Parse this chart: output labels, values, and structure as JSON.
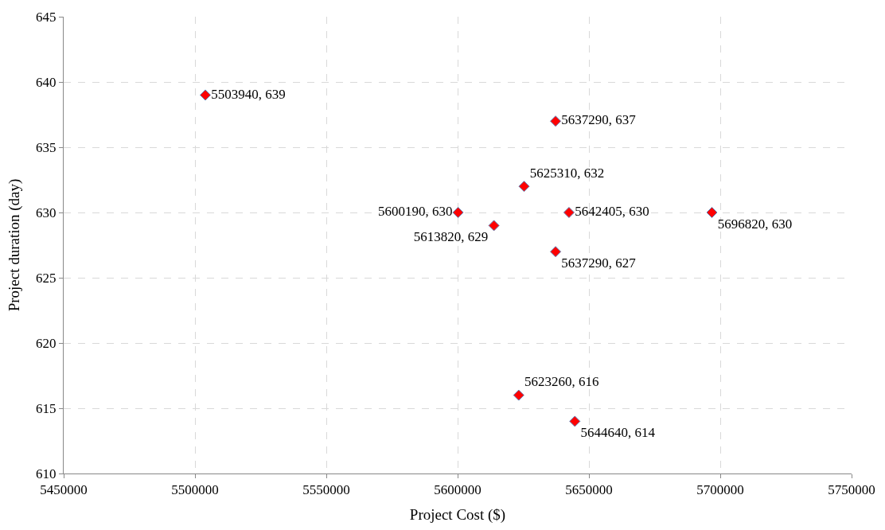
{
  "chart_data": {
    "type": "scatter",
    "xlabel": "Project Cost ($)",
    "ylabel": "Project duration (day)",
    "x": [
      5503940,
      5637290,
      5625310,
      5600190,
      5642405,
      5696820,
      5613820,
      5637290,
      5623260,
      5644640
    ],
    "series": [
      {
        "color": "#ff0000",
        "values": [
          639,
          637,
          632,
          630,
          630,
          630,
          629,
          627,
          616,
          614
        ],
        "value_labels": [
          "5503940, 639",
          "5637290, 637",
          "5625310, 632",
          "5600190, 630",
          "5642405, 630",
          "5696820, 630",
          "5613820, 629",
          "5637290, 627",
          "5623260, 616",
          "5644640, 614"
        ]
      }
    ],
    "xlim": [
      5450000,
      5750000
    ],
    "xticks": [
      5450000,
      5500000,
      5550000,
      5600000,
      5650000,
      5700000,
      5750000
    ],
    "ylim": [
      610,
      645
    ],
    "yticks": [
      610,
      615,
      620,
      625,
      630,
      635,
      640,
      645
    ],
    "grid": true,
    "marker": "diamond"
  }
}
